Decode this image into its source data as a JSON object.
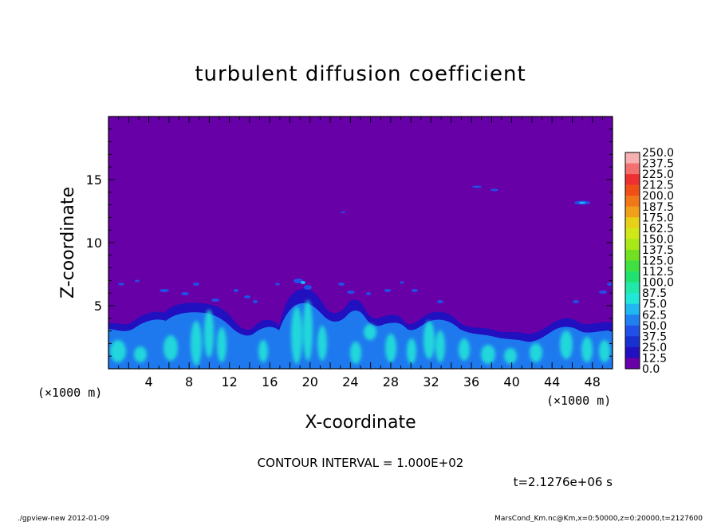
{
  "chart_data": {
    "type": "heatmap",
    "title": "turbulent diffusion coefficient",
    "xlabel": "X-coordinate",
    "ylabel": "Z-coordinate",
    "x_unit": "(×1000 m)",
    "y_unit": "(×1000 m)",
    "xlim": [
      0,
      50
    ],
    "ylim": [
      0,
      20
    ],
    "x_ticks": [
      4,
      8,
      12,
      16,
      20,
      24,
      28,
      32,
      36,
      40,
      44,
      48
    ],
    "y_ticks": [
      5,
      10,
      15
    ],
    "colorbar": {
      "levels": [
        "250.0",
        "237.5",
        "225.0",
        "212.5",
        "200.0",
        "187.5",
        "175.0",
        "162.5",
        "150.0",
        "137.5",
        "125.0",
        "112.5",
        "100.0",
        "87.5",
        "75.0",
        "62.5",
        "50.0",
        "37.5",
        "25.0",
        "12.5",
        "0.0"
      ],
      "colors": [
        "#f7b0b0",
        "#f47070",
        "#ee3030",
        "#f05018",
        "#f07818",
        "#f0a018",
        "#e8d018",
        "#d0e818",
        "#a8e818",
        "#70e020",
        "#40e040",
        "#20e070",
        "#20e8a8",
        "#20e8d8",
        "#20b8f0",
        "#2080f0",
        "#2050e8",
        "#1830d0",
        "#2010c0",
        "#6800a8"
      ]
    },
    "contour_interval": "CONTOUR INTERVAL = 1.000E+02",
    "time_label": "t=2.1276e+06 s",
    "footer_left": "./gpview-new  2012-01-09",
    "footer_right": "MarsCond_Km.nc@Km,x=0:50000,z=0:20000,t=2127600",
    "colors": {
      "background_field": "#6800a8",
      "low_turbulence": "#2010c0",
      "mid_turbulence": "#2080f0",
      "high_turbulence": "#20e8d8"
    }
  }
}
